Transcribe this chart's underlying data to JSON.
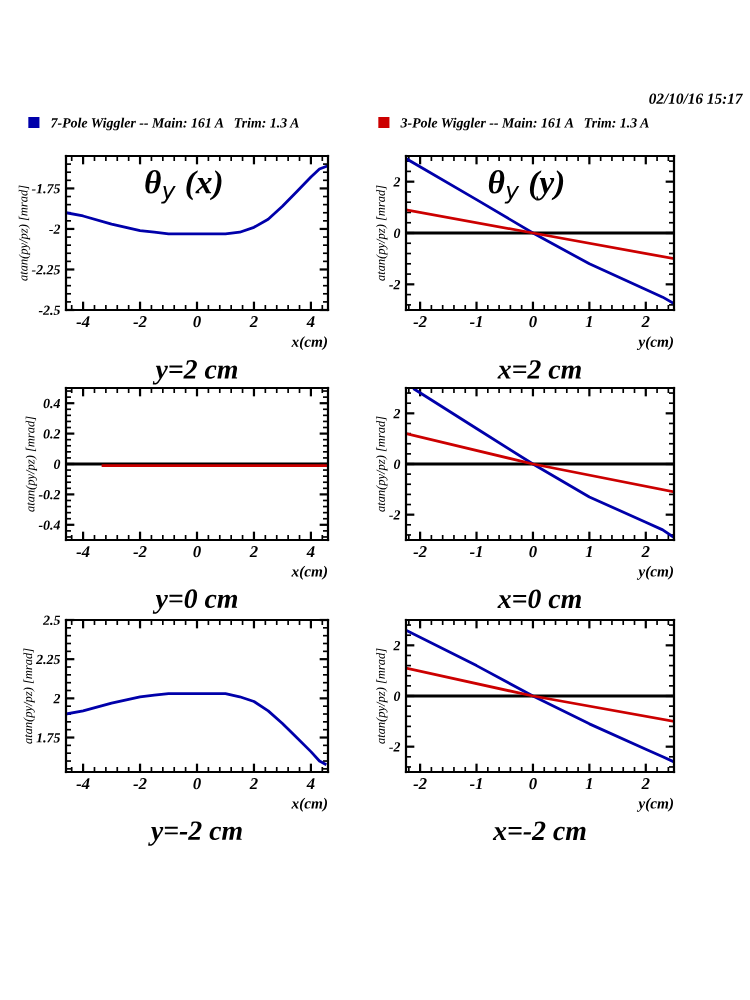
{
  "chart_data": [
    {
      "type": "line",
      "title": "θ$_{y}$ (x)",
      "xlabel": "x(cm)",
      "ylabel": "atan(py/pz) [mrad]",
      "annotations": [
        "y=2 cm"
      ],
      "legend": "top",
      "grid": false,
      "xlim": [
        -4.6,
        4.6
      ],
      "xticks": [
        -4,
        -2,
        0,
        2,
        4
      ],
      "ylim": [
        -2.5,
        -1.55
      ],
      "yticks": [
        -2.5,
        -2.25,
        -2,
        -1.75
      ],
      "series": [
        {
          "name": "7-Pole Wiggler -- Main: 161 A   Trim: 1.3 A",
          "color": "#0000aa",
          "x": [
            -4.6,
            -4,
            -3,
            -2,
            -1.5,
            -1,
            0,
            1,
            1.5,
            2,
            2.5,
            3,
            3.5,
            4,
            4.3,
            4.6
          ],
          "values": [
            -1.9,
            -1.92,
            -1.97,
            -2.01,
            -2.02,
            -2.03,
            -2.03,
            -2.03,
            -2.02,
            -1.99,
            -1.94,
            -1.86,
            -1.77,
            -1.68,
            -1.63,
            -1.61
          ]
        }
      ]
    },
    {
      "type": "line",
      "title": "θ$_{y}$ (y)",
      "xlabel": "y(cm)",
      "ylabel": "atan(py/pz) [mrad]",
      "annotations": [
        "x=2 cm",
        "02/10/16 15:17"
      ],
      "legend": "top",
      "grid": false,
      "xlim": [
        -2.25,
        2.5
      ],
      "xticks": [
        -2,
        -1,
        0,
        1,
        2
      ],
      "ylim": [
        -3,
        3
      ],
      "yticks": [
        -2,
        0,
        2
      ],
      "ref_lines": [
        {
          "axis": "y",
          "value": 0,
          "color": "#000000"
        }
      ],
      "series": [
        {
          "color": "#0000aa",
          "x": [
            -2.25,
            -1,
            0,
            1,
            2,
            2.3,
            2.5
          ],
          "values": [
            2.9,
            1.3,
            0,
            -1.2,
            -2.2,
            -2.5,
            -2.75
          ]
        },
        {
          "name": "3-Pole Wiggler -- Main: 161 A   Trim: 1.3 A",
          "color": "#cc0000",
          "x": [
            -2.25,
            0,
            2.5
          ],
          "values": [
            0.9,
            0,
            -1.0
          ]
        }
      ]
    },
    {
      "type": "line",
      "xlabel": "x(cm)",
      "ylabel": "atan(py/pz) [mrad]",
      "annotations": [
        "y=0 cm"
      ],
      "grid": false,
      "xlim": [
        -4.6,
        4.6
      ],
      "xticks": [
        -4,
        -2,
        0,
        2,
        4
      ],
      "ylim": [
        -0.5,
        0.5
      ],
      "yticks": [
        -0.4,
        -0.2,
        0,
        0.2,
        0.4
      ],
      "ref_lines": [
        {
          "axis": "y",
          "value": 0,
          "color": "#000000"
        }
      ],
      "series": [
        {
          "color": "#cc0000",
          "x": [
            -3.3,
            4.6
          ],
          "values": [
            -0.01,
            -0.01
          ]
        }
      ]
    },
    {
      "type": "line",
      "xlabel": "y(cm)",
      "ylabel": "atan(py/pz) [mrad]",
      "annotations": [
        "x=0 cm"
      ],
      "grid": false,
      "xlim": [
        -2.25,
        2.5
      ],
      "xticks": [
        -2,
        -1,
        0,
        1,
        2
      ],
      "ylim": [
        -3,
        3
      ],
      "yticks": [
        -2,
        0,
        2
      ],
      "ref_lines": [
        {
          "axis": "y",
          "value": 0,
          "color": "#000000"
        }
      ],
      "series": [
        {
          "color": "#0000aa",
          "x": [
            -2.1,
            -1,
            0,
            1,
            2,
            2.3,
            2.5
          ],
          "values": [
            2.95,
            1.4,
            0,
            -1.3,
            -2.3,
            -2.6,
            -2.9
          ]
        },
        {
          "color": "#cc0000",
          "x": [
            -2.25,
            0,
            2.5
          ],
          "values": [
            1.2,
            0,
            -1.1
          ]
        }
      ]
    },
    {
      "type": "line",
      "xlabel": "x(cm)",
      "ylabel": "atan(py/pz) [mrad]",
      "annotations": [
        "y=-2 cm"
      ],
      "grid": false,
      "xlim": [
        -4.6,
        4.6
      ],
      "xticks": [
        -4,
        -2,
        0,
        2,
        4
      ],
      "ylim": [
        1.53,
        2.5
      ],
      "yticks": [
        1.75,
        2,
        2.25,
        2.5
      ],
      "series": [
        {
          "color": "#0000aa",
          "x": [
            -4.6,
            -4,
            -3,
            -2,
            -1.5,
            -1,
            0,
            1,
            1.5,
            2,
            2.5,
            3,
            3.5,
            4,
            4.3,
            4.5
          ],
          "values": [
            1.9,
            1.92,
            1.97,
            2.01,
            2.02,
            2.03,
            2.03,
            2.03,
            2.01,
            1.98,
            1.92,
            1.84,
            1.75,
            1.66,
            1.6,
            1.58
          ]
        }
      ]
    },
    {
      "type": "line",
      "xlabel": "y(cm)",
      "ylabel": "atan(py/pz) [mrad]",
      "annotations": [
        "x=-2 cm"
      ],
      "grid": false,
      "xlim": [
        -2.25,
        2.5
      ],
      "xticks": [
        -2,
        -1,
        0,
        1,
        2
      ],
      "ylim": [
        -3,
        3
      ],
      "yticks": [
        -2,
        0,
        2
      ],
      "ref_lines": [
        {
          "axis": "y",
          "value": 0,
          "color": "#000000"
        }
      ],
      "series": [
        {
          "color": "#0000aa",
          "x": [
            -2.25,
            -1,
            0,
            1,
            2,
            2.3,
            2.5
          ],
          "values": [
            2.6,
            1.2,
            0,
            -1.1,
            -2.1,
            -2.4,
            -2.6
          ]
        },
        {
          "color": "#cc0000",
          "x": [
            -2.25,
            0,
            2.5
          ],
          "values": [
            1.1,
            0,
            -1.0
          ]
        }
      ]
    }
  ]
}
